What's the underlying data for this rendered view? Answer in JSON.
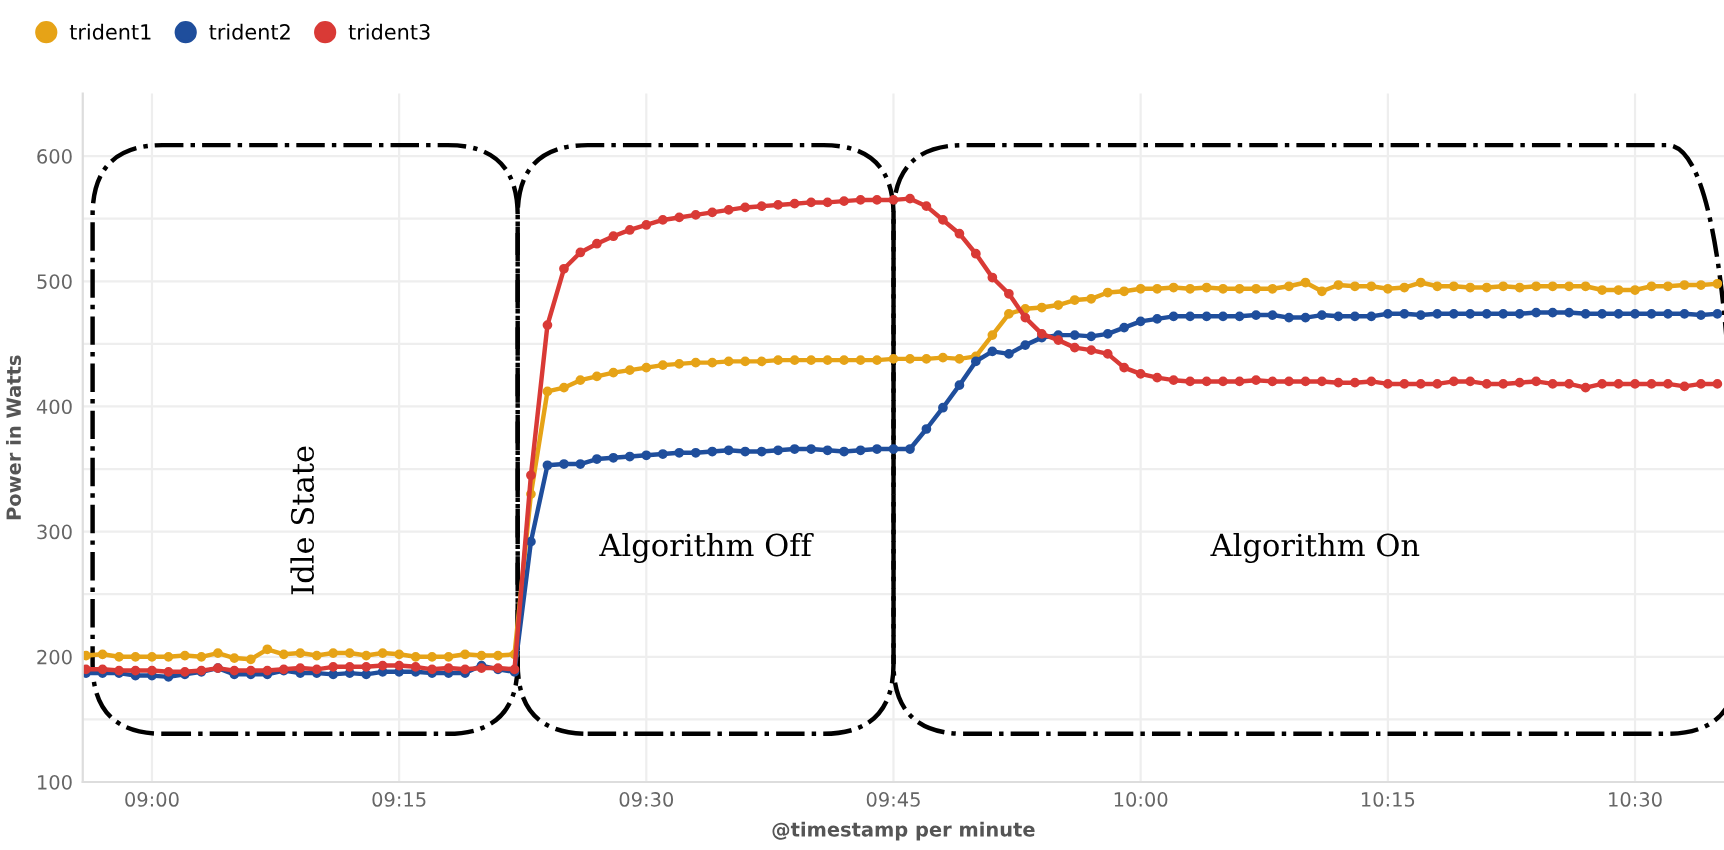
{
  "chart_data": {
    "type": "line",
    "xlabel": "@timestamp per minute",
    "ylabel": "Power in Watts",
    "x": [
      8.9333,
      8.95,
      8.9667,
      8.9833,
      9.0,
      9.0167,
      9.0333,
      9.05,
      9.0667,
      9.0833,
      9.1,
      9.1167,
      9.1333,
      9.15,
      9.1667,
      9.1833,
      9.2,
      9.2167,
      9.2333,
      9.25,
      9.2667,
      9.2833,
      9.3,
      9.3167,
      9.3333,
      9.35,
      9.3667,
      9.3833,
      9.4,
      9.4167,
      9.4333,
      9.45,
      9.4667,
      9.4833,
      9.5,
      9.5167,
      9.5333,
      9.55,
      9.5667,
      9.5833,
      9.6,
      9.6167,
      9.6333,
      9.65,
      9.6667,
      9.6833,
      9.7,
      9.7167,
      9.7333,
      9.75,
      9.7667,
      9.7833,
      9.8,
      9.8167,
      9.8333,
      9.85,
      9.8667,
      9.8833,
      9.9,
      9.9167,
      9.9333,
      9.95,
      9.9667,
      9.9833,
      10.0,
      10.0167,
      10.0333,
      10.05,
      10.0667,
      10.0833,
      10.1,
      10.1167,
      10.1333,
      10.15,
      10.1667,
      10.1833,
      10.2,
      10.2167,
      10.2333,
      10.25,
      10.2667,
      10.2833,
      10.3,
      10.3167,
      10.3333,
      10.35,
      10.3667,
      10.3833,
      10.4,
      10.4167,
      10.4333,
      10.45,
      10.4667,
      10.4833,
      10.5,
      10.5167,
      10.5333,
      10.55,
      10.5667,
      10.5833
    ],
    "series": [
      {
        "name": "trident1",
        "color": "#e6a317",
        "values": [
          201,
          202,
          200,
          200,
          200,
          200,
          201,
          200,
          203,
          199,
          198,
          206,
          202,
          203,
          201,
          203,
          203,
          201,
          203,
          202,
          200,
          200,
          200,
          202,
          201,
          201,
          202,
          330,
          412,
          415,
          421,
          424,
          427,
          429,
          431,
          433,
          434,
          435,
          435,
          436,
          436,
          436,
          437,
          437,
          437,
          437,
          437,
          437,
          437,
          438,
          438,
          438,
          439,
          438,
          440,
          457,
          474,
          478,
          479,
          481,
          485,
          486,
          491,
          492,
          494,
          494,
          495,
          494,
          495,
          494,
          494,
          494,
          494,
          496,
          499,
          492,
          497,
          496,
          496,
          494,
          495,
          499,
          496,
          496,
          495,
          495,
          496,
          495,
          496,
          496,
          496,
          496,
          493,
          493,
          493,
          496,
          496,
          497,
          497,
          498
        ]
      },
      {
        "name": "trident2",
        "color": "#1f4e9c",
        "values": [
          187,
          187,
          187,
          185,
          185,
          184,
          186,
          188,
          191,
          186,
          186,
          186,
          189,
          187,
          187,
          186,
          187,
          186,
          188,
          188,
          188,
          187,
          187,
          187,
          193,
          190,
          188,
          292,
          353,
          354,
          354,
          358,
          359,
          360,
          361,
          362,
          363,
          363,
          364,
          365,
          364,
          364,
          365,
          366,
          366,
          365,
          364,
          365,
          366,
          366,
          366,
          382,
          399,
          417,
          436,
          444,
          442,
          449,
          455,
          457,
          457,
          456,
          458,
          463,
          468,
          470,
          472,
          472,
          472,
          472,
          472,
          473,
          473,
          471,
          471,
          473,
          472,
          472,
          472,
          474,
          474,
          473,
          474,
          474,
          474,
          474,
          474,
          474,
          475,
          475,
          475,
          474,
          474,
          474,
          474,
          474,
          474,
          474,
          473,
          474
        ]
      },
      {
        "name": "trident3",
        "color": "#d93a36",
        "values": [
          190,
          190,
          189,
          189,
          189,
          188,
          188,
          189,
          191,
          189,
          189,
          189,
          190,
          191,
          190,
          192,
          192,
          192,
          193,
          193,
          192,
          190,
          191,
          190,
          191,
          191,
          190,
          345,
          465,
          510,
          523,
          530,
          536,
          541,
          545,
          549,
          551,
          553,
          555,
          557,
          559,
          560,
          561,
          562,
          563,
          563,
          564,
          565,
          565,
          565,
          566,
          560,
          549,
          538,
          522,
          503,
          490,
          471,
          458,
          453,
          447,
          445,
          442,
          431,
          426,
          423,
          421,
          420,
          420,
          420,
          420,
          421,
          420,
          420,
          420,
          420,
          419,
          419,
          420,
          418,
          418,
          418,
          418,
          420,
          420,
          418,
          418,
          419,
          420,
          418,
          418,
          415,
          418,
          418,
          418,
          418,
          418,
          416,
          418,
          418
        ]
      }
    ],
    "xlim": [
      8.93,
      10.59
    ],
    "xticks": [
      {
        "value": 9,
        "label": "09:00"
      },
      {
        "value": 9.25,
        "label": "09:15"
      },
      {
        "value": 9.5,
        "label": "09:30"
      },
      {
        "value": 9.75,
        "label": "09:45"
      },
      {
        "value": 10,
        "label": "10:00"
      },
      {
        "value": 10.25,
        "label": "10:15"
      },
      {
        "value": 10.5,
        "label": "10:30"
      }
    ],
    "ylim": [
      100,
      650
    ],
    "yticks": [
      100,
      {
        "value": 150,
        "label": null
      },
      200,
      {
        "value": 250,
        "label": null
      },
      300,
      {
        "value": 350,
        "label": null
      },
      400,
      {
        "value": 450,
        "label": null
      },
      500,
      {
        "value": 550,
        "label": null
      },
      600
    ],
    "annotations": [
      "Idle State",
      "Algorithm Off",
      "Algorithm On"
    ],
    "grid": true,
    "legend": "top left",
    "marker": "circle",
    "line_style": "solid"
  }
}
